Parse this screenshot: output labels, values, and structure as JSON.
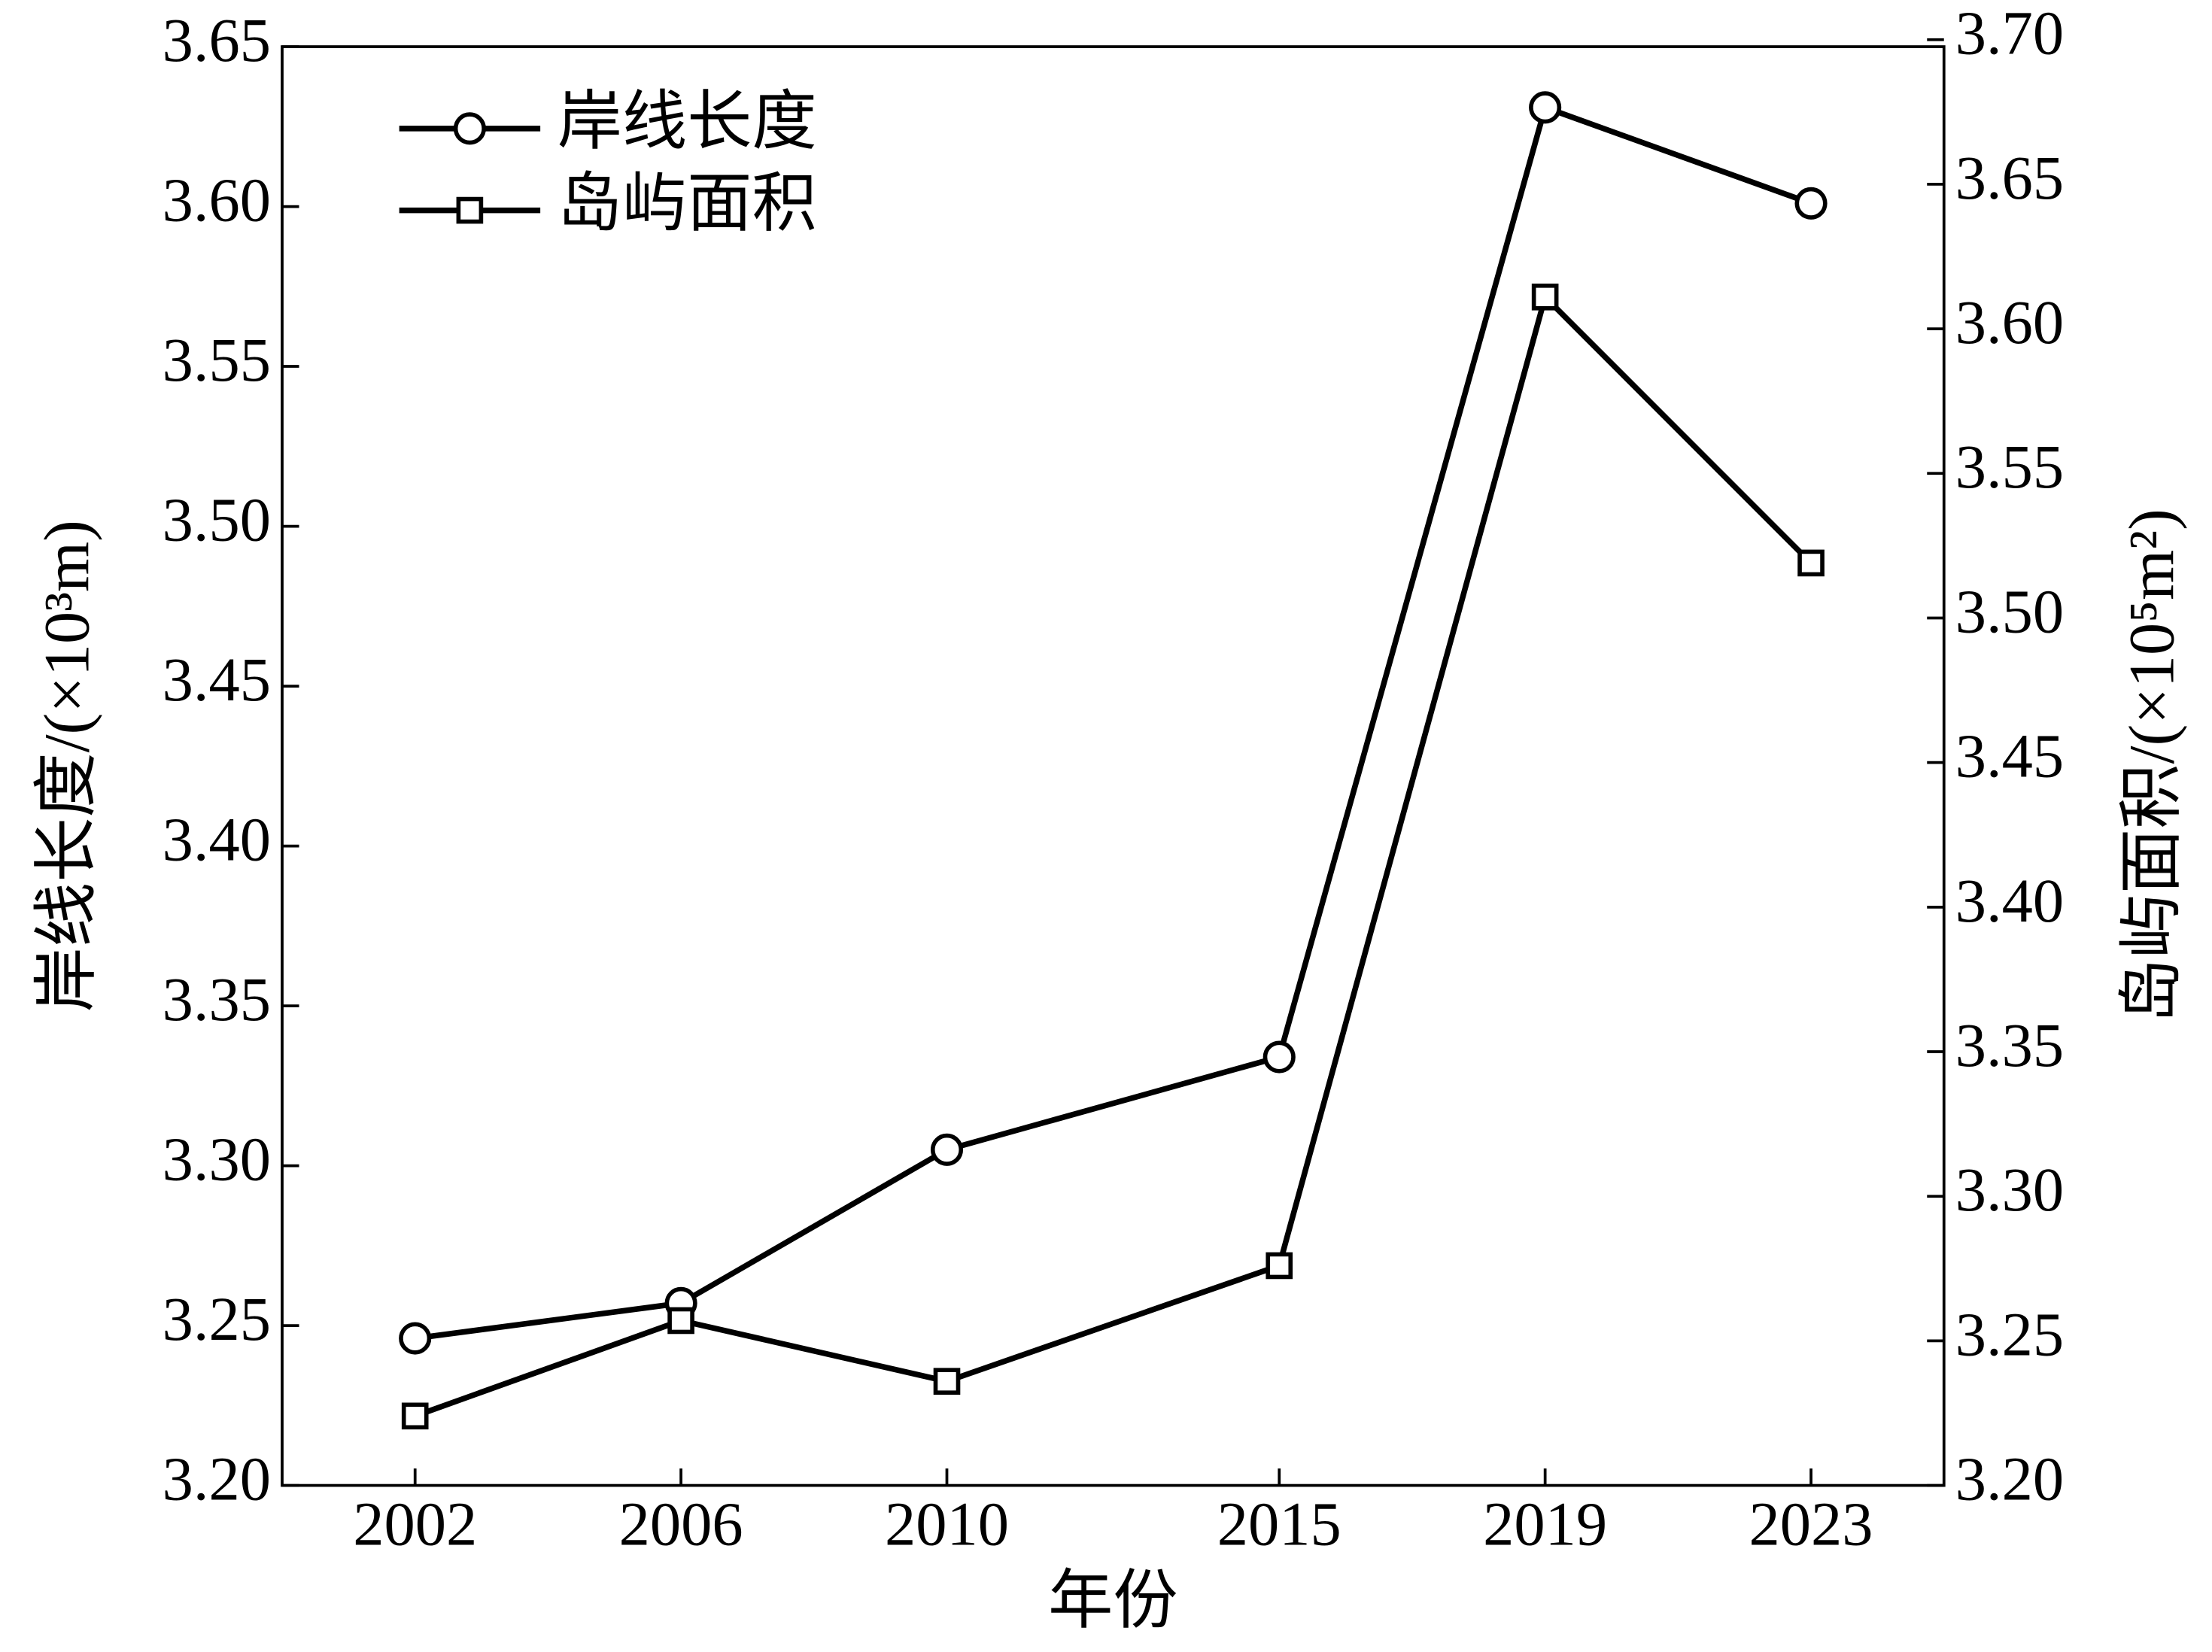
{
  "chart_data": {
    "type": "line",
    "xlabel": "年份",
    "ylabel": "岸线长度/(×10³m)",
    "y2label": "岛屿面积/(×10⁵m²)",
    "x": [
      2002,
      2006,
      2010,
      2015,
      2019,
      2023
    ],
    "xlim": [
      2000,
      2025
    ],
    "xticks": [
      2002,
      2006,
      2010,
      2015,
      2019,
      2023
    ],
    "ylim": [
      3.2,
      3.65
    ],
    "yticks": [
      {
        "value": 3.2,
        "label": "3.20"
      },
      {
        "value": 3.25,
        "label": "3.25"
      },
      {
        "value": 3.3,
        "label": "3.30"
      },
      {
        "value": 3.35,
        "label": "3.35"
      },
      {
        "value": 3.4,
        "label": "3.40"
      },
      {
        "value": 3.45,
        "label": "3.45"
      },
      {
        "value": 3.5,
        "label": "3.50"
      },
      {
        "value": 3.55,
        "label": "3.55"
      },
      {
        "value": 3.6,
        "label": "3.60"
      },
      {
        "value": 3.65,
        "label": "3.65"
      }
    ],
    "y2lim": [
      3.2,
      3.7
    ],
    "y2ticks": [
      {
        "value": 3.2,
        "label": "3.20"
      },
      {
        "value": 3.25,
        "label": "3.25"
      },
      {
        "value": 3.3,
        "label": "3.30"
      },
      {
        "value": 3.35,
        "label": "3.35"
      },
      {
        "value": 3.4,
        "label": "3.40"
      },
      {
        "value": 3.45,
        "label": "3.45"
      },
      {
        "value": 3.5,
        "label": "3.50"
      },
      {
        "value": 3.55,
        "label": "3.55"
      },
      {
        "value": 3.6,
        "label": "3.60"
      },
      {
        "value": 3.65,
        "label": "3.65"
      },
      {
        "value": 3.7,
        "label": "3.70"
      }
    ],
    "legend": "upper left",
    "series": [
      {
        "name": "岸线长度",
        "color": "#000000",
        "marker": "circle",
        "values": [
          3.246,
          3.257,
          3.305,
          3.334,
          3.631,
          3.601
        ]
      },
      {
        "name": "岛屿面积",
        "color": "#000000",
        "marker": "square",
        "axis": "y2",
        "values": [
          3.224,
          3.257,
          3.236,
          3.276,
          3.611,
          3.519
        ]
      }
    ]
  }
}
